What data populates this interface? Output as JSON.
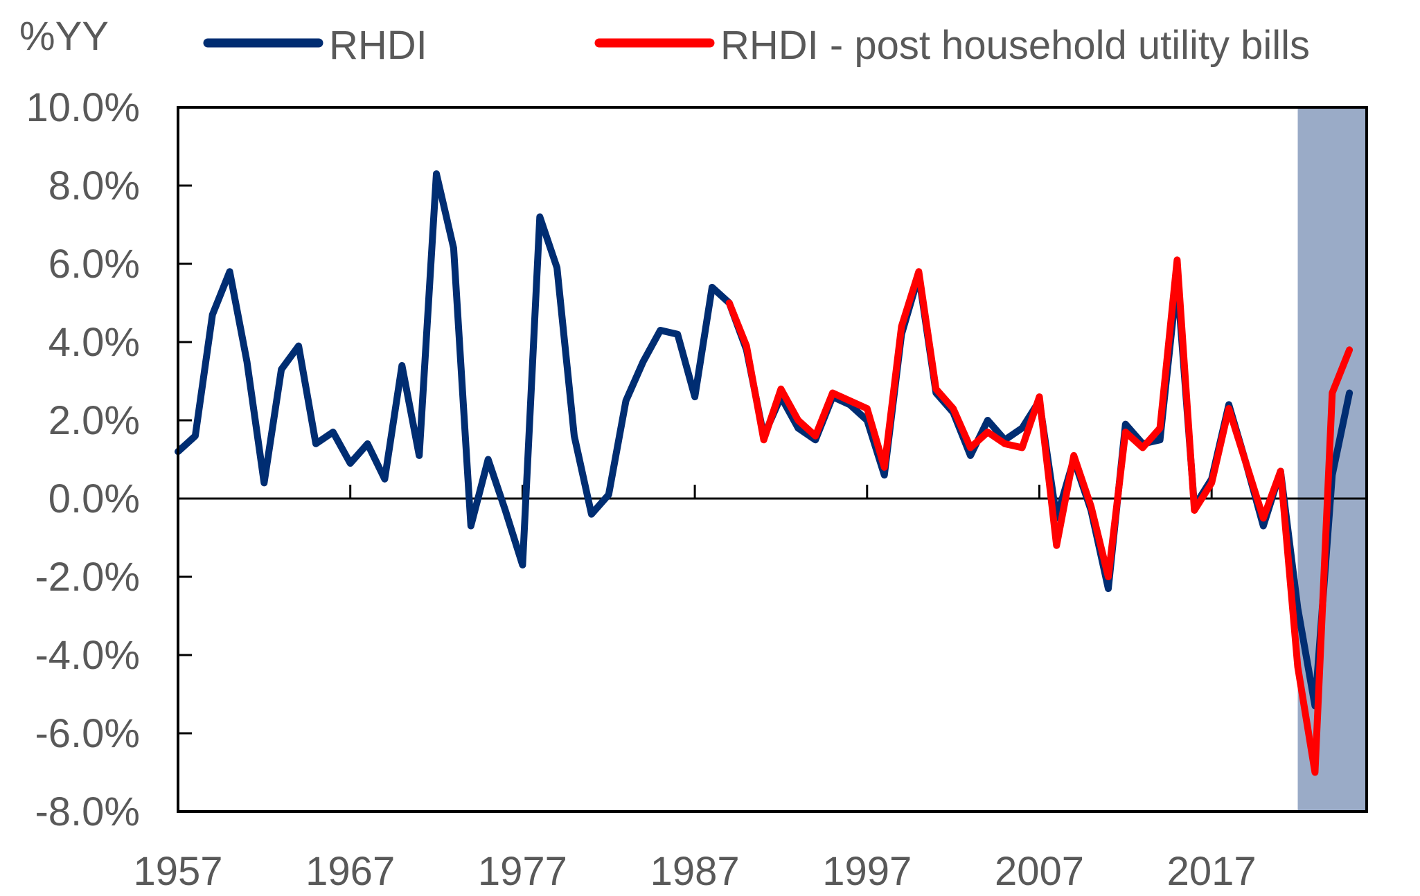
{
  "chart_data": {
    "type": "line",
    "unit_label": "%YY",
    "xlabel": "",
    "ylabel": "",
    "xlim": [
      1957,
      2026
    ],
    "ylim": [
      -8.0,
      10.0
    ],
    "y_ticks": [
      10.0,
      8.0,
      6.0,
      4.0,
      2.0,
      0.0,
      -2.0,
      -4.0,
      -6.0,
      -8.0
    ],
    "y_tick_labels": [
      "10.0%",
      "8.0%",
      "6.0%",
      "4.0%",
      "2.0%",
      "0.0%",
      "-2.0%",
      "-4.0%",
      "-6.0%",
      "-8.0%"
    ],
    "x_ticks": [
      1957,
      1967,
      1977,
      1987,
      1997,
      2007,
      2017
    ],
    "x_tick_labels": [
      "1957",
      "1967",
      "1977",
      "1987",
      "1997",
      "2007",
      "2017"
    ],
    "shaded_region": {
      "x_start": 2022,
      "x_end": 2025.9,
      "color": "#9aabc7"
    },
    "legend": {
      "position": "top",
      "entries": [
        "RHDI",
        "RHDI - post household utility bills"
      ]
    },
    "series": [
      {
        "name": "RHDI",
        "color": "#002d72",
        "x": [
          1957,
          1958,
          1959,
          1960,
          1961,
          1962,
          1963,
          1964,
          1965,
          1966,
          1967,
          1968,
          1969,
          1970,
          1971,
          1972,
          1973,
          1974,
          1975,
          1976,
          1977,
          1978,
          1979,
          1980,
          1981,
          1982,
          1983,
          1984,
          1985,
          1986,
          1987,
          1988,
          1989,
          1990,
          1991,
          1992,
          1993,
          1994,
          1995,
          1996,
          1997,
          1998,
          1999,
          2000,
          2001,
          2002,
          2003,
          2004,
          2005,
          2006,
          2007,
          2008,
          2009,
          2010,
          2011,
          2012,
          2013,
          2014,
          2015,
          2016,
          2017,
          2018,
          2019,
          2020,
          2021,
          2022,
          2023,
          2024,
          2025
        ],
        "values": [
          1.2,
          1.6,
          4.7,
          5.8,
          3.5,
          0.4,
          3.3,
          3.9,
          1.4,
          1.7,
          0.9,
          1.4,
          0.5,
          3.4,
          1.1,
          8.3,
          6.4,
          -0.7,
          1.0,
          -0.3,
          -1.7,
          7.2,
          5.9,
          1.6,
          -0.4,
          0.1,
          2.5,
          3.5,
          4.3,
          4.2,
          2.6,
          5.4,
          5.0,
          3.8,
          1.6,
          2.6,
          1.8,
          1.5,
          2.6,
          2.4,
          2.0,
          0.6,
          4.2,
          5.7,
          2.7,
          2.2,
          1.1,
          2.0,
          1.5,
          1.8,
          2.5,
          -0.5,
          1.0,
          -0.3,
          -2.3,
          1.9,
          1.4,
          1.5,
          5.6,
          -0.2,
          0.5,
          2.4,
          0.9,
          -0.7,
          0.7,
          -2.8,
          -5.3,
          0.6,
          2.7
        ]
      },
      {
        "name": "RHDI - post household utility bills",
        "color": "#ff0000",
        "x": [
          1989,
          1990,
          1991,
          1992,
          1993,
          1994,
          1995,
          1996,
          1997,
          1998,
          1999,
          2000,
          2001,
          2002,
          2003,
          2004,
          2005,
          2006,
          2007,
          2008,
          2009,
          2010,
          2011,
          2012,
          2013,
          2014,
          2015,
          2016,
          2017,
          2018,
          2019,
          2020,
          2021,
          2022,
          2023,
          2024,
          2025
        ],
        "values": [
          5.0,
          3.9,
          1.5,
          2.8,
          2.0,
          1.6,
          2.7,
          2.5,
          2.3,
          0.8,
          4.4,
          5.8,
          2.8,
          2.3,
          1.3,
          1.7,
          1.4,
          1.3,
          2.6,
          -1.2,
          1.1,
          -0.2,
          -2.0,
          1.7,
          1.3,
          1.8,
          6.1,
          -0.3,
          0.4,
          2.3,
          0.9,
          -0.5,
          0.7,
          -4.3,
          -7.0,
          2.7,
          3.8
        ]
      }
    ]
  }
}
